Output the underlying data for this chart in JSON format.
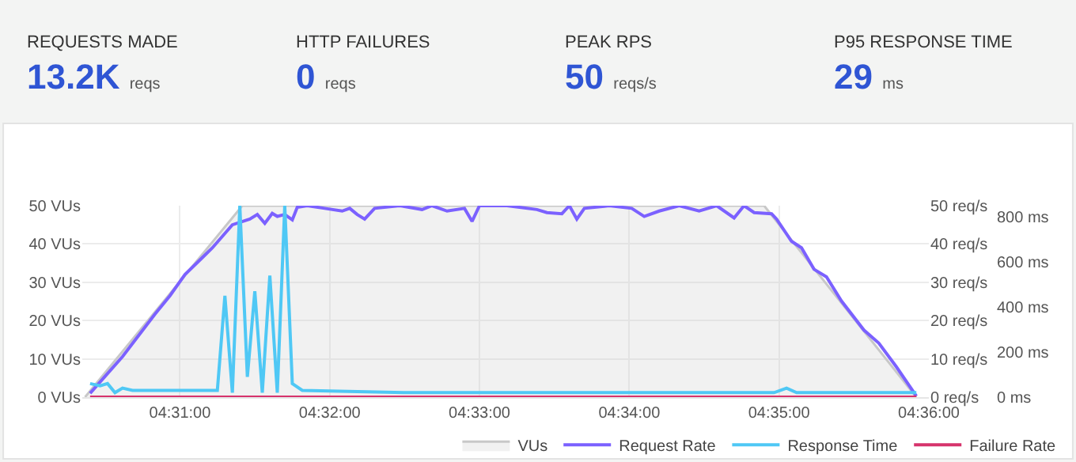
{
  "chart_data": [
    {
      "type": "other",
      "annotations": [
        "REQUESTS MADE",
        "13.2K",
        "reqs",
        "HTTP FAILURES",
        "0",
        "reqs",
        "PEAK RPS",
        "50",
        "reqs/s",
        "P95 RESPONSE TIME",
        "29",
        "ms"
      ]
    },
    {
      "type": "line",
      "grid": true,
      "legend": "bottom",
      "marker": "none",
      "line_style": "solid",
      "xlim": [
        4.5058,
        4.6
      ],
      "xticks": [
        {
          "value": 4.516667,
          "label": "04:31:00"
        },
        {
          "value": 4.533333,
          "label": "04:32:00"
        },
        {
          "value": 4.55,
          "label": "04:33:00"
        },
        {
          "value": 4.566667,
          "label": "04:34:00"
        },
        {
          "value": 4.583333,
          "label": "04:35:00"
        },
        {
          "value": 4.6,
          "label": "04:36:00"
        }
      ],
      "ylim": [
        0,
        50
      ],
      "yticks": [
        {
          "value": 0,
          "label": "0 VUs"
        },
        {
          "value": 10,
          "label": "10 VUs"
        },
        {
          "value": 20,
          "label": "20 VUs"
        },
        {
          "value": 30,
          "label": "30 VUs"
        },
        {
          "value": 40,
          "label": "40 VUs"
        },
        {
          "value": 50,
          "label": "50 VUs"
        }
      ],
      "y2lim": [
        0,
        50
      ],
      "y2ticks": [
        {
          "value": 0,
          "label": "0 req/s"
        },
        {
          "value": 10,
          "label": "10 req/s"
        },
        {
          "value": 20,
          "label": "20 req/s"
        },
        {
          "value": 30,
          "label": "30 req/s"
        },
        {
          "value": 40,
          "label": "40 req/s"
        },
        {
          "value": 50,
          "label": "50 req/s"
        }
      ],
      "y3lim": [
        0,
        850
      ],
      "y3ticks": [
        {
          "value": 0,
          "label": "0 ms"
        },
        {
          "value": 200,
          "label": "200 ms"
        },
        {
          "value": 400,
          "label": "400 ms"
        },
        {
          "value": 600,
          "label": "600 ms"
        },
        {
          "value": 800,
          "label": "800 ms"
        }
      ],
      "series": [
        {
          "name": "VUs",
          "type": "area",
          "color": "#c8c8c8",
          "x": [
            4.50611,
            4.52361,
            4.58167,
            4.59861
          ],
          "values": [
            0,
            50,
            50,
            0
          ]
        },
        {
          "name": "Request Rate",
          "type": "line",
          "axis": "y2",
          "color": "#7b61ff",
          "x": [
            4.50667,
            4.51028,
            4.51389,
            4.51556,
            4.51722,
            4.52028,
            4.5225,
            4.52444,
            4.52528,
            4.52611,
            4.52694,
            4.5275,
            4.52833,
            4.52917,
            4.52972,
            4.53083,
            4.53278,
            4.53472,
            4.53556,
            4.53639,
            4.53722,
            4.53833,
            4.54111,
            4.54361,
            4.54472,
            4.54639,
            4.54833,
            4.54917,
            4.55,
            4.55306,
            4.55639,
            4.5575,
            4.55917,
            4.56,
            4.56083,
            4.56167,
            4.56444,
            4.56694,
            4.56833,
            4.57,
            4.57222,
            4.57444,
            4.57639,
            4.57833,
            4.57944,
            4.58056,
            4.5825,
            4.58306,
            4.58472,
            4.58583,
            4.58722,
            4.58861,
            4.59028,
            4.59278,
            4.59444,
            4.59639,
            4.59861
          ],
          "values": [
            1,
            10.6,
            21.7,
            26.5,
            32,
            39,
            45,
            46.5,
            47.7,
            45.4,
            48,
            47.2,
            47.7,
            46.3,
            49.6,
            50,
            49.3,
            48.6,
            49.3,
            47.7,
            46.5,
            49.3,
            50,
            49,
            50,
            48.6,
            49.3,
            45.9,
            50,
            50,
            49,
            48.2,
            47.9,
            50,
            46.5,
            49.3,
            50,
            49.3,
            47.2,
            48.6,
            50,
            48.6,
            50,
            46.8,
            50,
            48.2,
            47.9,
            46.5,
            40.7,
            39,
            33.4,
            31.4,
            25.1,
            17.5,
            14.1,
            7.9,
            0.3
          ]
        },
        {
          "name": "Response Time",
          "type": "line",
          "axis": "y3",
          "color": "#4fc8f5",
          "x": [
            4.50667,
            4.50778,
            4.50861,
            4.50944,
            4.51028,
            4.51139,
            4.51444,
            4.51917,
            4.52083,
            4.52167,
            4.5225,
            4.52333,
            4.52417,
            4.525,
            4.52583,
            4.52667,
            4.5275,
            4.52833,
            4.52917,
            4.53028,
            4.54167,
            4.56944,
            4.58278,
            4.58417,
            4.58528,
            4.59861
          ],
          "values": [
            60,
            50,
            60,
            20,
            40,
            30,
            30,
            30,
            30,
            450,
            20,
            850,
            90,
            470,
            20,
            540,
            20,
            850,
            60,
            30,
            20,
            20,
            20,
            40,
            20,
            20
          ]
        },
        {
          "name": "Failure Rate",
          "type": "line",
          "axis": "y2",
          "color": "#d6336c",
          "x": [
            4.50667,
            4.51667,
            4.53333,
            4.55,
            4.56667,
            4.58333,
            4.59861
          ],
          "values": [
            0,
            0,
            0,
            0,
            0,
            0,
            0
          ]
        }
      ]
    }
  ]
}
